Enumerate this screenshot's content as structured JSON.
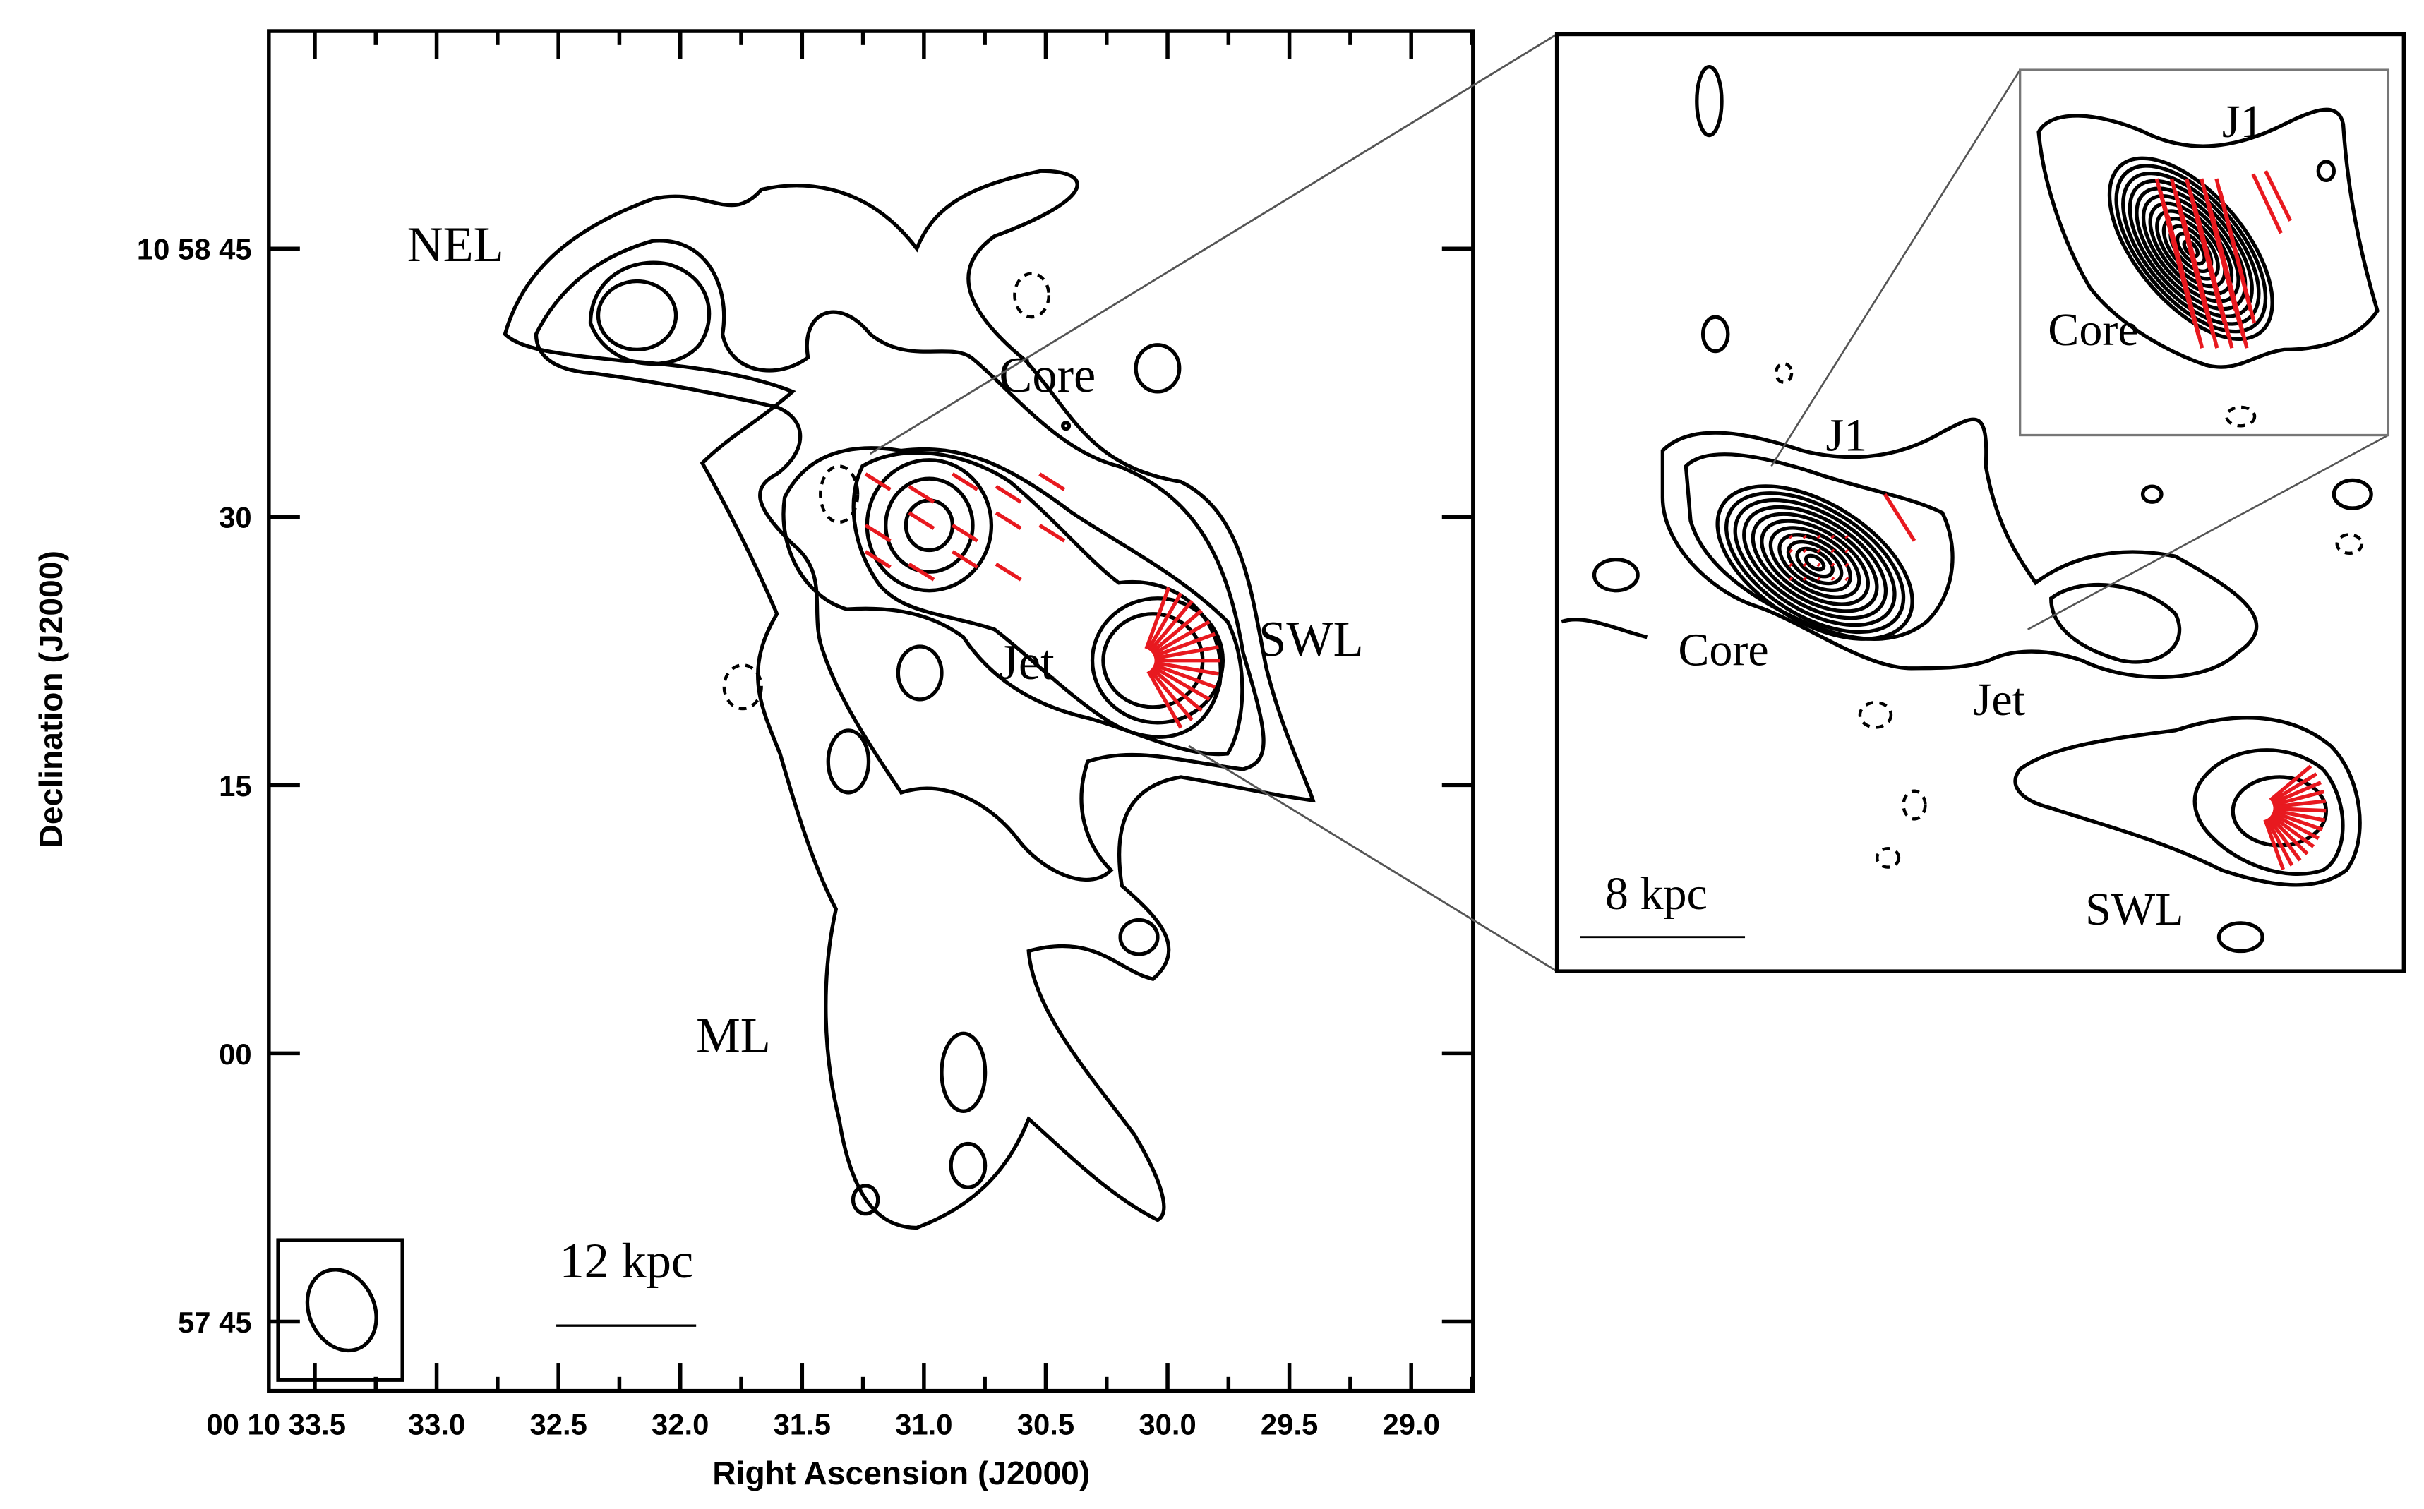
{
  "main_panel": {
    "x_axis_label": "Right Ascension (J2000)",
    "y_axis_label": "Declination (J2000)",
    "x_tick_labels": [
      "00 10 33.5",
      "33.0",
      "32.5",
      "32.0",
      "31.5",
      "31.0",
      "30.5",
      "30.0",
      "29.5",
      "29.0"
    ],
    "y_tick_labels": [
      "10 58 45",
      "30",
      "15",
      "00",
      "57 45"
    ],
    "annotations": [
      "NEL",
      "Core",
      "Jet",
      "SWL",
      "ML"
    ],
    "scale_bar": "12 kpc"
  },
  "inset": {
    "annotations": [
      "J1",
      "Core",
      "Jet",
      "SWL"
    ],
    "scale_bar": "8 kpc"
  },
  "zoom_inset": {
    "annotations": [
      "J1",
      "Core"
    ]
  }
}
